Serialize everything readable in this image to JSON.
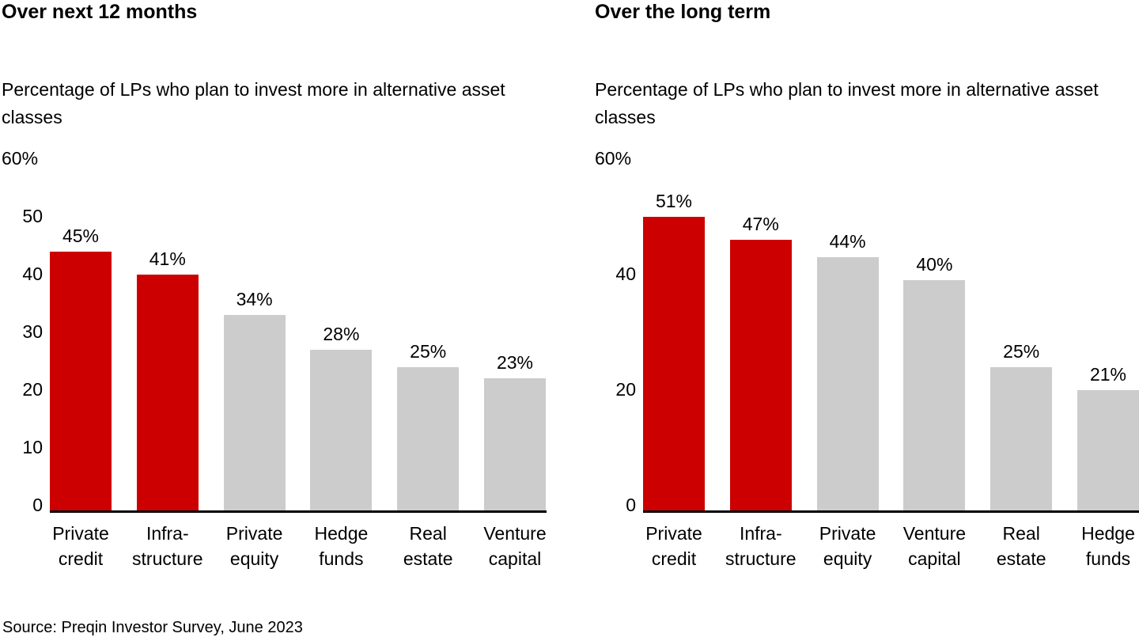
{
  "source": {
    "text": "Source: Preqin Investor Survey, June 2023"
  },
  "colors": {
    "highlight": "#cc0000",
    "bar_default": "#cccccc",
    "axis": "#000000",
    "text": "#000000",
    "background": "#ffffff"
  },
  "chart_data": [
    {
      "type": "bar",
      "title": "Over next 12 months",
      "subtitle": "Percentage of LPs who plan to invest more in alternative asset classes",
      "xlabel": "",
      "ylabel": "",
      "ylim": [
        0,
        60
      ],
      "grid": false,
      "legend": "none",
      "y_ticks": [
        {
          "value": 0,
          "label": "0"
        },
        {
          "value": 10,
          "label": "10"
        },
        {
          "value": 20,
          "label": "20"
        },
        {
          "value": 30,
          "label": "30"
        },
        {
          "value": 40,
          "label": "40"
        },
        {
          "value": 50,
          "label": "50"
        },
        {
          "value": 60,
          "label": "60%"
        }
      ],
      "categories": [
        [
          "Private",
          "credit"
        ],
        [
          "Infra-",
          "structure"
        ],
        [
          "Private",
          "equity"
        ],
        [
          "Hedge",
          "funds"
        ],
        [
          "Real",
          "estate"
        ],
        [
          "Venture",
          "capital"
        ]
      ],
      "values": [
        45,
        41,
        34,
        28,
        25,
        23
      ],
      "value_labels": [
        "45%",
        "41%",
        "34%",
        "28%",
        "25%",
        "23%"
      ],
      "highlighted": [
        true,
        true,
        false,
        false,
        false,
        false
      ]
    },
    {
      "type": "bar",
      "title": "Over the long term",
      "subtitle": "Percentage of LPs who plan to invest more in alternative asset classes",
      "xlabel": "",
      "ylabel": "",
      "ylim": [
        0,
        60
      ],
      "grid": false,
      "legend": "none",
      "y_ticks": [
        {
          "value": 0,
          "label": "0"
        },
        {
          "value": 20,
          "label": "20"
        },
        {
          "value": 40,
          "label": "40"
        },
        {
          "value": 60,
          "label": "60%"
        }
      ],
      "categories": [
        [
          "Private",
          "credit"
        ],
        [
          "Infra-",
          "structure"
        ],
        [
          "Private",
          "equity"
        ],
        [
          "Venture",
          "capital"
        ],
        [
          "Real",
          "estate"
        ],
        [
          "Hedge",
          "funds"
        ]
      ],
      "values": [
        51,
        47,
        44,
        40,
        25,
        21
      ],
      "value_labels": [
        "51%",
        "47%",
        "44%",
        "40%",
        "25%",
        "21%"
      ],
      "highlighted": [
        true,
        true,
        false,
        false,
        false,
        false
      ]
    }
  ]
}
